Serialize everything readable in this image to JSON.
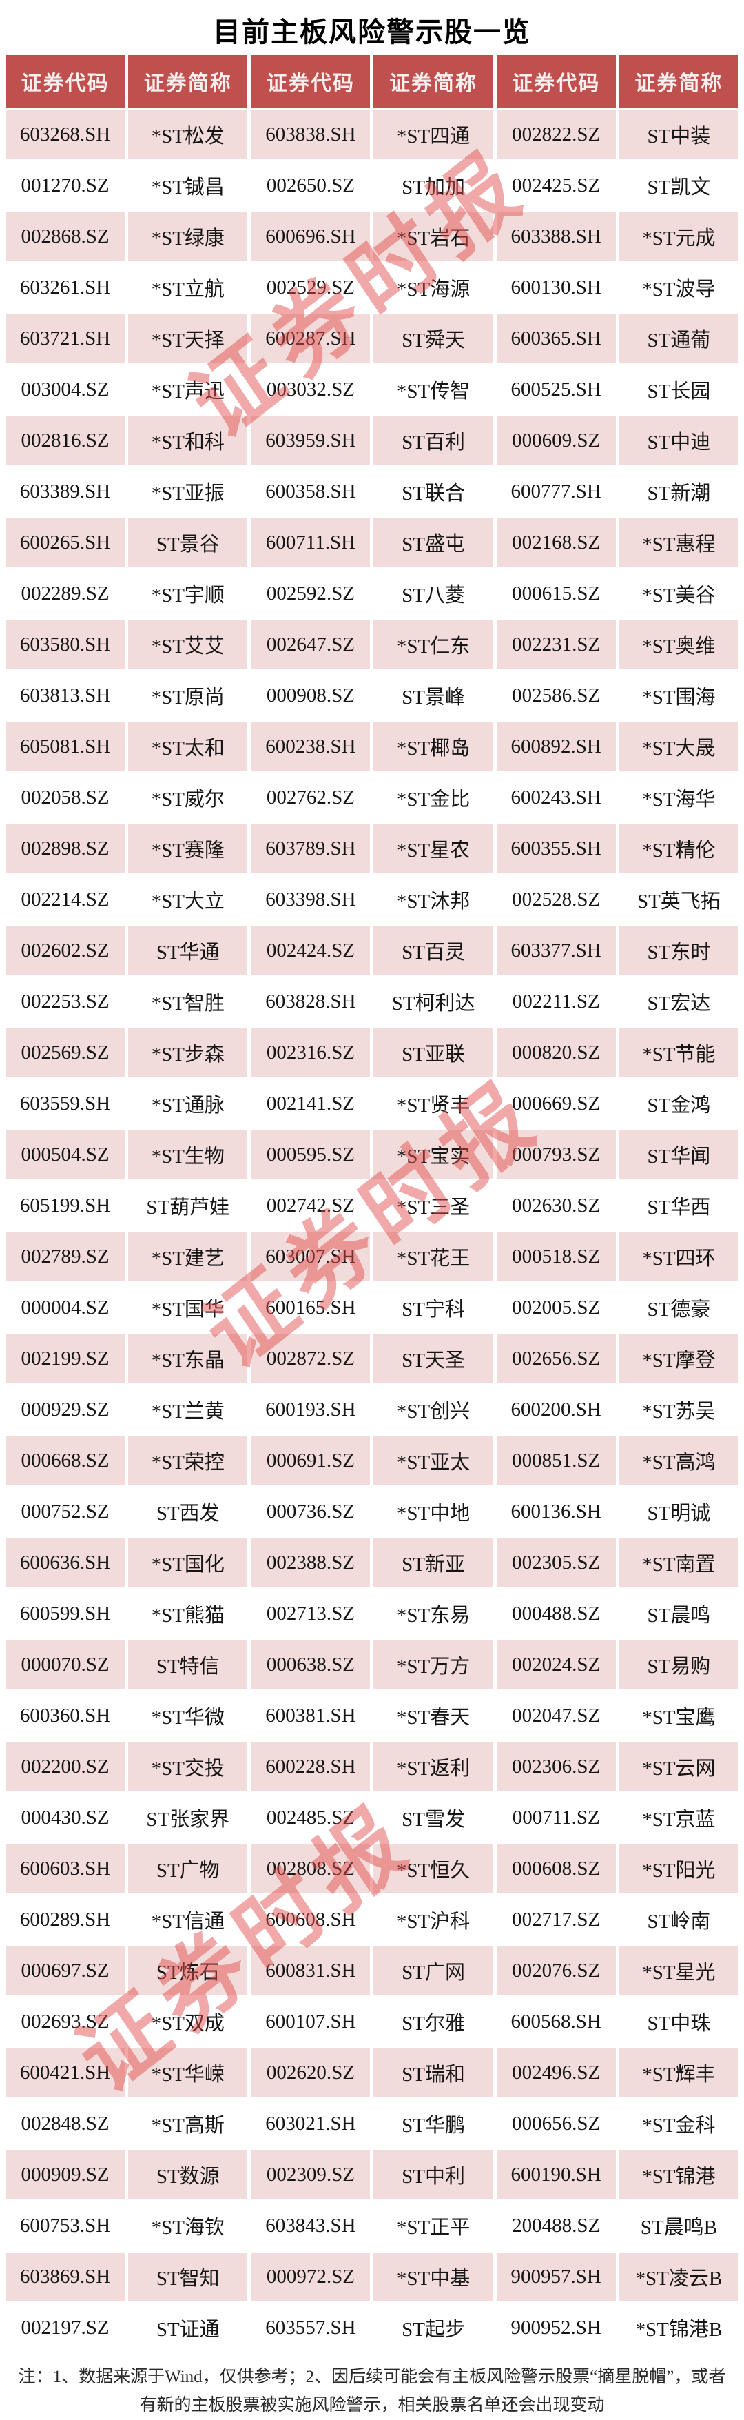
{
  "chart_data": {
    "type": "table",
    "title": "目前主板风险警示股一览",
    "columns": [
      "证券代码",
      "证券简称",
      "证券代码",
      "证券简称",
      "证券代码",
      "证券简称"
    ],
    "rows": [
      [
        "603268.SH",
        "*ST松发",
        "603838.SH",
        "*ST四通",
        "002822.SZ",
        "ST中装"
      ],
      [
        "001270.SZ",
        "*ST铖昌",
        "002650.SZ",
        "ST加加",
        "002425.SZ",
        "ST凯文"
      ],
      [
        "002868.SZ",
        "*ST绿康",
        "600696.SH",
        "*ST岩石",
        "603388.SH",
        "*ST元成"
      ],
      [
        "603261.SH",
        "*ST立航",
        "002529.SZ",
        "*ST海源",
        "600130.SH",
        "*ST波导"
      ],
      [
        "603721.SH",
        "*ST天择",
        "600287.SH",
        "ST舜天",
        "600365.SH",
        "ST通葡"
      ],
      [
        "003004.SZ",
        "*ST声迅",
        "003032.SZ",
        "*ST传智",
        "600525.SH",
        "ST长园"
      ],
      [
        "002816.SZ",
        "*ST和科",
        "603959.SH",
        "ST百利",
        "000609.SZ",
        "ST中迪"
      ],
      [
        "603389.SH",
        "*ST亚振",
        "600358.SH",
        "ST联合",
        "600777.SH",
        "ST新潮"
      ],
      [
        "600265.SH",
        "ST景谷",
        "600711.SH",
        "ST盛屯",
        "002168.SZ",
        "*ST惠程"
      ],
      [
        "002289.SZ",
        "*ST宇顺",
        "002592.SZ",
        "ST八菱",
        "000615.SZ",
        "*ST美谷"
      ],
      [
        "603580.SH",
        "*ST艾艾",
        "002647.SZ",
        "*ST仁东",
        "002231.SZ",
        "*ST奥维"
      ],
      [
        "603813.SH",
        "*ST原尚",
        "000908.SZ",
        "ST景峰",
        "002586.SZ",
        "*ST围海"
      ],
      [
        "605081.SH",
        "*ST太和",
        "600238.SH",
        "*ST椰岛",
        "600892.SH",
        "*ST大晟"
      ],
      [
        "002058.SZ",
        "*ST威尔",
        "002762.SZ",
        "*ST金比",
        "600243.SH",
        "*ST海华"
      ],
      [
        "002898.SZ",
        "*ST赛隆",
        "603789.SH",
        "*ST星农",
        "600355.SH",
        "*ST精伦"
      ],
      [
        "002214.SZ",
        "*ST大立",
        "603398.SH",
        "*ST沐邦",
        "002528.SZ",
        "ST英飞拓"
      ],
      [
        "002602.SZ",
        "ST华通",
        "002424.SZ",
        "ST百灵",
        "603377.SH",
        "ST东时"
      ],
      [
        "002253.SZ",
        "*ST智胜",
        "603828.SH",
        "ST柯利达",
        "002211.SZ",
        "ST宏达"
      ],
      [
        "002569.SZ",
        "*ST步森",
        "002316.SZ",
        "ST亚联",
        "000820.SZ",
        "*ST节能"
      ],
      [
        "603559.SH",
        "*ST通脉",
        "002141.SZ",
        "*ST贤丰",
        "000669.SZ",
        "ST金鸿"
      ],
      [
        "000504.SZ",
        "*ST生物",
        "000595.SZ",
        "*ST宝实",
        "000793.SZ",
        "ST华闻"
      ],
      [
        "605199.SH",
        "ST葫芦娃",
        "002742.SZ",
        "*ST三圣",
        "002630.SZ",
        "ST华西"
      ],
      [
        "002789.SZ",
        "*ST建艺",
        "603007.SH",
        "*ST花王",
        "000518.SZ",
        "*ST四环"
      ],
      [
        "000004.SZ",
        "*ST国华",
        "600165.SH",
        "ST宁科",
        "002005.SZ",
        "ST德豪"
      ],
      [
        "002199.SZ",
        "*ST东晶",
        "002872.SZ",
        "ST天圣",
        "002656.SZ",
        "*ST摩登"
      ],
      [
        "000929.SZ",
        "*ST兰黄",
        "600193.SH",
        "*ST创兴",
        "600200.SH",
        "*ST苏吴"
      ],
      [
        "000668.SZ",
        "*ST荣控",
        "000691.SZ",
        "*ST亚太",
        "000851.SZ",
        "*ST高鸿"
      ],
      [
        "000752.SZ",
        "ST西发",
        "000736.SZ",
        "*ST中地",
        "600136.SH",
        "ST明诚"
      ],
      [
        "600636.SH",
        "*ST国化",
        "002388.SZ",
        "ST新亚",
        "002305.SZ",
        "*ST南置"
      ],
      [
        "600599.SH",
        "*ST熊猫",
        "002713.SZ",
        "*ST东易",
        "000488.SZ",
        "ST晨鸣"
      ],
      [
        "000070.SZ",
        "ST特信",
        "000638.SZ",
        "*ST万方",
        "002024.SZ",
        "ST易购"
      ],
      [
        "600360.SH",
        "*ST华微",
        "600381.SH",
        "*ST春天",
        "002047.SZ",
        "*ST宝鹰"
      ],
      [
        "002200.SZ",
        "*ST交投",
        "600228.SH",
        "*ST返利",
        "002306.SZ",
        "*ST云网"
      ],
      [
        "000430.SZ",
        "ST张家界",
        "002485.SZ",
        "ST雪发",
        "000711.SZ",
        "*ST京蓝"
      ],
      [
        "600603.SH",
        "ST广物",
        "002808.SZ",
        "*ST恒久",
        "000608.SZ",
        "*ST阳光"
      ],
      [
        "600289.SH",
        "*ST信通",
        "600608.SH",
        "*ST沪科",
        "002717.SZ",
        "ST岭南"
      ],
      [
        "000697.SZ",
        "ST炼石",
        "600831.SH",
        "ST广网",
        "002076.SZ",
        "*ST星光"
      ],
      [
        "002693.SZ",
        "*ST双成",
        "600107.SH",
        "ST尔雅",
        "600568.SH",
        "ST中珠"
      ],
      [
        "600421.SH",
        "*ST华嵘",
        "002620.SZ",
        "ST瑞和",
        "002496.SZ",
        "*ST辉丰"
      ],
      [
        "002848.SZ",
        "*ST高斯",
        "603021.SH",
        "ST华鹏",
        "000656.SZ",
        "*ST金科"
      ],
      [
        "000909.SZ",
        "ST数源",
        "002309.SZ",
        "ST中利",
        "600190.SH",
        "*ST锦港"
      ],
      [
        "600753.SH",
        "*ST海钦",
        "603843.SH",
        "*ST正平",
        "200488.SZ",
        "ST晨鸣B"
      ],
      [
        "603869.SH",
        "ST智知",
        "000972.SZ",
        "*ST中基",
        "900957.SH",
        "*ST凌云B"
      ],
      [
        "002197.SZ",
        "ST证通",
        "603557.SH",
        "ST起步",
        "900952.SH",
        "*ST锦港B"
      ]
    ],
    "note": "注：1、数据来源于Wind，仅供参考；2、因后续可能会有主板风险警示股票“摘星脱帽”，或者有新的主板股票被实施风险警示，相关股票名单还会出现变动",
    "legend_position": "none",
    "grid": "off"
  },
  "watermark": {
    "text": "证券时报"
  },
  "colors": {
    "header_bg": "#C0504D",
    "header_text": "#FBEFEF",
    "row_pink": "#F2DCDB",
    "row_white": "#FFFFFF",
    "watermark_red": "#E04B4B"
  }
}
